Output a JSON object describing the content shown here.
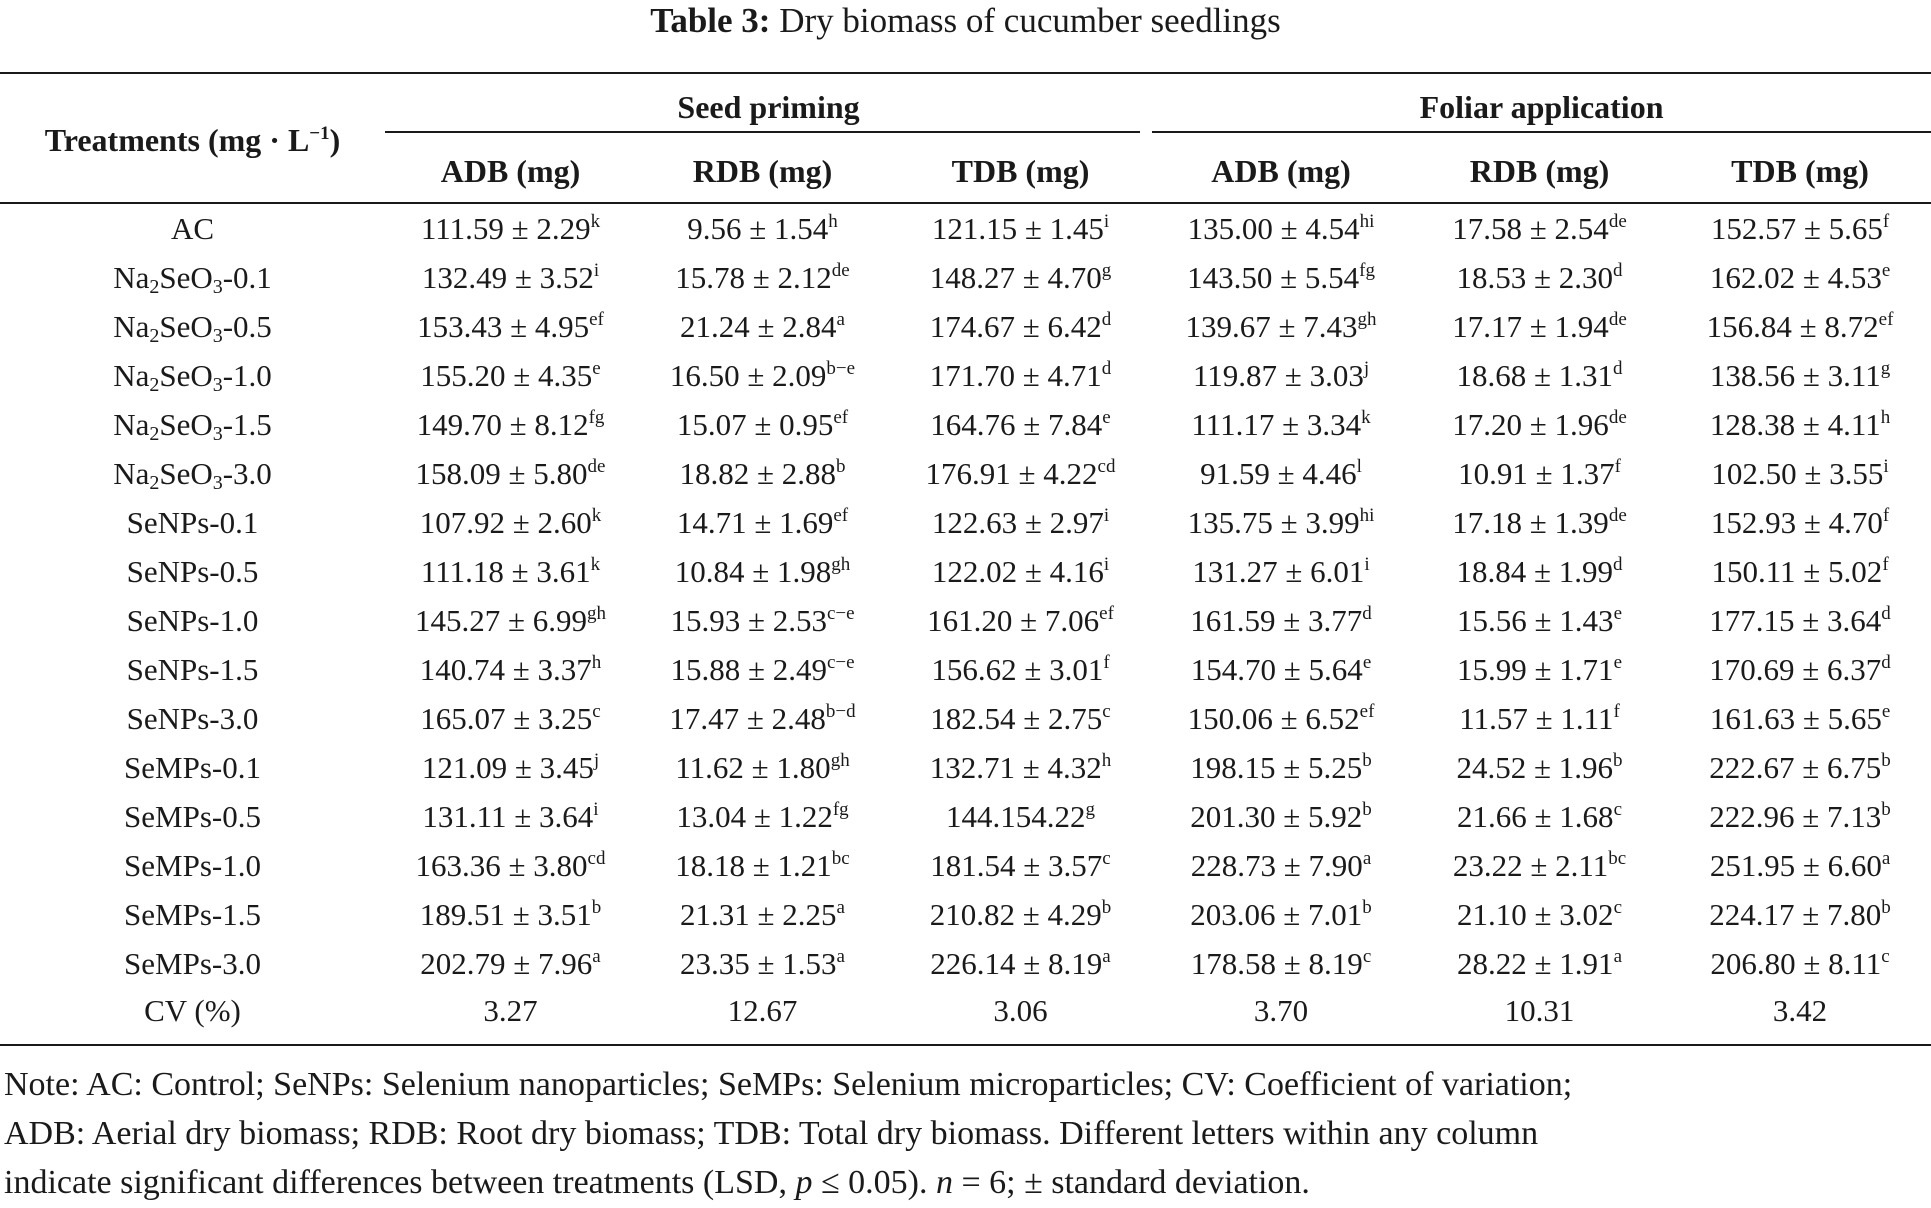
{
  "caption": {
    "label": "Table 3:",
    "title": "Dry biomass of cucumber seedlings"
  },
  "header": {
    "treatments": "Treatments (mg · L",
    "treatments_sup": "−1",
    "treatments_close": ")",
    "groups": [
      "Seed priming",
      "Foliar application"
    ],
    "columns": [
      "ADB (mg)",
      "RDB (mg)",
      "TDB (mg)",
      "ADB (mg)",
      "RDB (mg)",
      "TDB (mg)"
    ]
  },
  "rows": [
    {
      "t": [
        "AC"
      ],
      "cells": [
        [
          "111.59 ± 2.29",
          "k"
        ],
        [
          "9.56 ± 1.54",
          "h"
        ],
        [
          "121.15 ± 1.45",
          "i"
        ],
        [
          "135.00 ± 4.54",
          "hi"
        ],
        [
          "17.58 ± 2.54",
          "de"
        ],
        [
          "152.57 ± 5.65",
          "f"
        ]
      ]
    },
    {
      "t": [
        "Na",
        "2",
        "SeO",
        "3",
        "-0.1"
      ],
      "cells": [
        [
          "132.49 ± 3.52",
          "i"
        ],
        [
          "15.78 ± 2.12",
          "de"
        ],
        [
          "148.27 ± 4.70",
          "g"
        ],
        [
          "143.50 ± 5.54",
          "fg"
        ],
        [
          "18.53 ± 2.30",
          "d"
        ],
        [
          "162.02 ± 4.53",
          "e"
        ]
      ]
    },
    {
      "t": [
        "Na",
        "2",
        "SeO",
        "3",
        "-0.5"
      ],
      "cells": [
        [
          "153.43 ± 4.95",
          "ef"
        ],
        [
          "21.24 ± 2.84",
          "a"
        ],
        [
          "174.67 ± 6.42",
          "d"
        ],
        [
          "139.67 ± 7.43",
          "gh"
        ],
        [
          "17.17 ± 1.94",
          "de"
        ],
        [
          "156.84 ± 8.72",
          "ef"
        ]
      ]
    },
    {
      "t": [
        "Na",
        "2",
        "SeO",
        "3",
        "-1.0"
      ],
      "cells": [
        [
          "155.20 ± 4.35",
          "e"
        ],
        [
          "16.50 ± 2.09",
          "b−e"
        ],
        [
          "171.70 ± 4.71",
          "d"
        ],
        [
          "119.87 ± 3.03",
          "j"
        ],
        [
          "18.68 ± 1.31",
          "d"
        ],
        [
          "138.56 ± 3.11",
          "g"
        ]
      ]
    },
    {
      "t": [
        "Na",
        "2",
        "SeO",
        "3",
        "-1.5"
      ],
      "cells": [
        [
          "149.70 ± 8.12",
          "fg"
        ],
        [
          "15.07 ± 0.95",
          "ef"
        ],
        [
          "164.76 ± 7.84",
          "e"
        ],
        [
          "111.17 ± 3.34",
          "k"
        ],
        [
          "17.20 ± 1.96",
          "de"
        ],
        [
          "128.38 ± 4.11",
          "h"
        ]
      ]
    },
    {
      "t": [
        "Na",
        "2",
        "SeO",
        "3",
        "-3.0"
      ],
      "cells": [
        [
          "158.09 ± 5.80",
          "de"
        ],
        [
          "18.82 ± 2.88",
          "b"
        ],
        [
          "176.91 ± 4.22",
          "cd"
        ],
        [
          "91.59 ± 4.46",
          "l"
        ],
        [
          "10.91 ± 1.37",
          "f"
        ],
        [
          "102.50 ± 3.55",
          "i"
        ]
      ]
    },
    {
      "t": [
        "SeNPs-0.1"
      ],
      "cells": [
        [
          "107.92 ± 2.60",
          "k"
        ],
        [
          "14.71 ± 1.69",
          "ef"
        ],
        [
          "122.63 ± 2.97",
          "i"
        ],
        [
          "135.75 ± 3.99",
          "hi"
        ],
        [
          "17.18 ± 1.39",
          "de"
        ],
        [
          "152.93 ± 4.70",
          "f"
        ]
      ]
    },
    {
      "t": [
        "SeNPs-0.5"
      ],
      "cells": [
        [
          "111.18 ± 3.61",
          "k"
        ],
        [
          "10.84 ± 1.98",
          "gh"
        ],
        [
          "122.02 ± 4.16",
          "i"
        ],
        [
          "131.27 ± 6.01",
          "i"
        ],
        [
          "18.84 ± 1.99",
          "d"
        ],
        [
          "150.11 ± 5.02",
          "f"
        ]
      ]
    },
    {
      "t": [
        "SeNPs-1.0"
      ],
      "cells": [
        [
          "145.27 ± 6.99",
          "gh"
        ],
        [
          "15.93 ± 2.53",
          "c−e"
        ],
        [
          "161.20 ± 7.06",
          "ef"
        ],
        [
          "161.59 ± 3.77",
          "d"
        ],
        [
          "15.56 ± 1.43",
          "e"
        ],
        [
          "177.15 ± 3.64",
          "d"
        ]
      ]
    },
    {
      "t": [
        "SeNPs-1.5"
      ],
      "cells": [
        [
          "140.74 ± 3.37",
          "h"
        ],
        [
          "15.88 ± 2.49",
          "c−e"
        ],
        [
          "156.62 ± 3.01",
          "f"
        ],
        [
          "154.70 ± 5.64",
          "e"
        ],
        [
          "15.99 ± 1.71",
          "e"
        ],
        [
          "170.69 ± 6.37",
          "d"
        ]
      ]
    },
    {
      "t": [
        "SeNPs-3.0"
      ],
      "cells": [
        [
          "165.07 ± 3.25",
          "c"
        ],
        [
          "17.47 ± 2.48",
          "b−d"
        ],
        [
          "182.54 ± 2.75",
          "c"
        ],
        [
          "150.06 ± 6.52",
          "ef"
        ],
        [
          "11.57 ± 1.11",
          "f"
        ],
        [
          "161.63 ± 5.65",
          "e"
        ]
      ]
    },
    {
      "t": [
        "SeMPs-0.1"
      ],
      "cells": [
        [
          "121.09 ± 3.45",
          "j"
        ],
        [
          "11.62 ± 1.80",
          "gh"
        ],
        [
          "132.71 ± 4.32",
          "h"
        ],
        [
          "198.15 ± 5.25",
          "b"
        ],
        [
          "24.52 ± 1.96",
          "b"
        ],
        [
          "222.67 ± 6.75",
          "b"
        ]
      ]
    },
    {
      "t": [
        "SeMPs-0.5"
      ],
      "cells": [
        [
          "131.11 ± 3.64",
          "i"
        ],
        [
          "13.04 ± 1.22",
          "fg"
        ],
        [
          "144.154.22",
          "g"
        ],
        [
          "201.30 ± 5.92",
          "b"
        ],
        [
          "21.66 ± 1.68",
          "c"
        ],
        [
          "222.96 ± 7.13",
          "b"
        ]
      ]
    },
    {
      "t": [
        "SeMPs-1.0"
      ],
      "cells": [
        [
          "163.36 ± 3.80",
          "cd"
        ],
        [
          "18.18 ± 1.21",
          "bc"
        ],
        [
          "181.54 ± 3.57",
          "c"
        ],
        [
          "228.73 ± 7.90",
          "a"
        ],
        [
          "23.22 ± 2.11",
          "bc"
        ],
        [
          "251.95 ± 6.60",
          "a"
        ]
      ]
    },
    {
      "t": [
        "SeMPs-1.5"
      ],
      "cells": [
        [
          "189.51 ± 3.51",
          "b"
        ],
        [
          "21.31 ± 2.25",
          "a"
        ],
        [
          "210.82 ± 4.29",
          "b"
        ],
        [
          "203.06 ± 7.01",
          "b"
        ],
        [
          "21.10 ± 3.02",
          "c"
        ],
        [
          "224.17 ± 7.80",
          "b"
        ]
      ]
    },
    {
      "t": [
        "SeMPs-3.0"
      ],
      "cells": [
        [
          "202.79 ± 7.96",
          "a"
        ],
        [
          "23.35 ± 1.53",
          "a"
        ],
        [
          "226.14 ± 8.19",
          "a"
        ],
        [
          "178.58 ± 8.19",
          "c"
        ],
        [
          "28.22 ± 1.91",
          "a"
        ],
        [
          "206.80 ± 8.11",
          "c"
        ]
      ]
    }
  ],
  "cv": {
    "label": "CV (%)",
    "values": [
      "3.27",
      "12.67",
      "3.06",
      "3.70",
      "10.31",
      "3.42"
    ]
  },
  "note": {
    "l1": "Note: AC: Control; SeNPs: Selenium nanoparticles; SeMPs: Selenium microparticles; CV: Coefficient of variation;",
    "l2": "ADB: Aerial dry biomass; RDB: Root dry biomass; TDB: Total dry biomass. Different letters within any column",
    "l3a": "indicate significant differences between treatments (LSD, ",
    "l3p": "p",
    "l3b": " ≤ 0.05). ",
    "l3n": "n",
    "l3c": " = 6; ± standard deviation."
  }
}
